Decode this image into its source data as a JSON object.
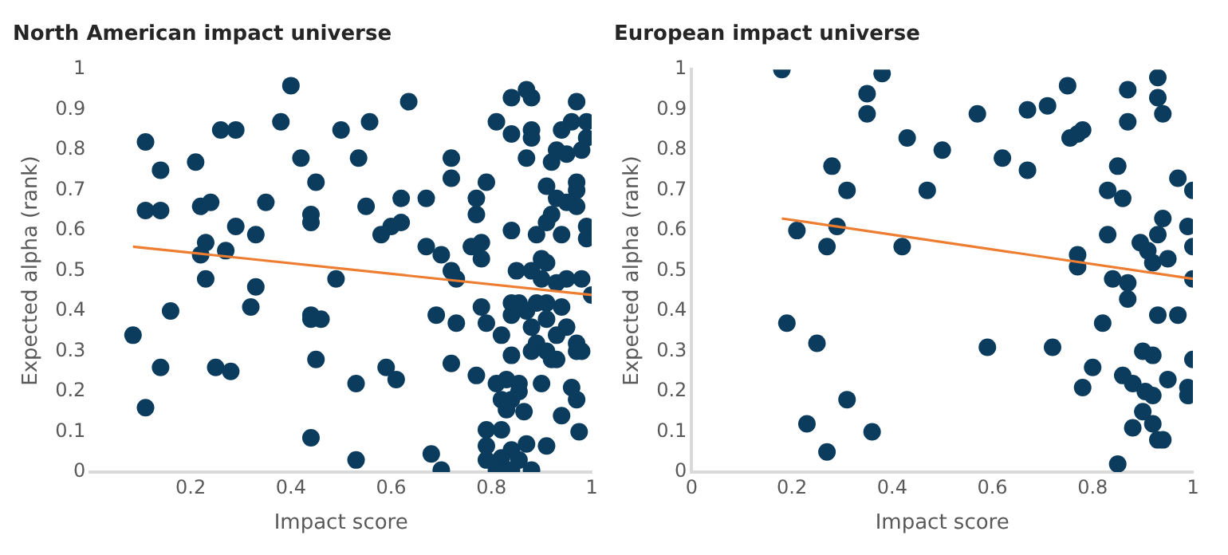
{
  "chart_data": [
    {
      "type": "scatter",
      "title": "North American impact universe",
      "xlabel": "Impact score",
      "ylabel": "Expected alpha (rank)",
      "xlim": [
        0,
        1
      ],
      "ylim": [
        0,
        1
      ],
      "xticks": [
        0.2,
        0.4,
        0.6,
        0.8,
        1
      ],
      "yticks": [
        0,
        0.1,
        0.2,
        0.3,
        0.4,
        0.5,
        0.6,
        0.7,
        0.8,
        0.9,
        1
      ],
      "grid": false,
      "series": [
        {
          "type": "scatter",
          "marker": "circle",
          "color": "#0b3c5d",
          "x": [
            0.4,
            0.11,
            0.26,
            0.29,
            0.38,
            0.5,
            0.14,
            0.21,
            0.42,
            0.45,
            0.11,
            0.14,
            0.22,
            0.24,
            0.35,
            0.44,
            0.44,
            0.29,
            0.33,
            0.23,
            0.22,
            0.27,
            0.23,
            0.49,
            0.33,
            0.32,
            0.16,
            0.44,
            0.46,
            0.44,
            0.085,
            0.14,
            0.25,
            0.28,
            0.45,
            0.11,
            0.44,
            0.53,
            0.53,
            0.535,
            0.635,
            0.557,
            0.55,
            0.62,
            0.67,
            0.58,
            0.6,
            0.62,
            0.67,
            0.7,
            0.72,
            0.73,
            0.72,
            0.72,
            0.79,
            0.77,
            0.77,
            0.76,
            0.78,
            0.78,
            0.84,
            0.85,
            0.69,
            0.73,
            0.78,
            0.79,
            0.82,
            0.84,
            0.72,
            0.77,
            0.59,
            0.61,
            0.68,
            0.7,
            0.84,
            0.87,
            0.88,
            0.97,
            0.81,
            0.84,
            0.88,
            0.88,
            0.87,
            0.94,
            0.96,
            0.99,
            0.93,
            0.92,
            0.95,
            0.98,
            0.99,
            0.91,
            0.93,
            0.97,
            0.97,
            0.97,
            0.95,
            0.92,
            0.91,
            0.89,
            0.94,
            0.99,
            0.99,
            0.9,
            0.91,
            0.88,
            0.9,
            0.93,
            0.95,
            0.98,
            1.0,
            0.84,
            0.855,
            0.87,
            0.84,
            0.89,
            0.91,
            0.94,
            0.91,
            0.95,
            0.93,
            0.88,
            0.89,
            0.88,
            0.91,
            0.92,
            0.93,
            0.97,
            0.98,
            0.97,
            0.81,
            0.83,
            0.855,
            0.82,
            0.84,
            0.83,
            0.865,
            0.855,
            0.9,
            0.96,
            0.97,
            0.94,
            0.975,
            0.79,
            0.82,
            0.79,
            0.79,
            0.82,
            0.84,
            0.87,
            0.81,
            0.84,
            0.855,
            0.88,
            0.91
          ],
          "values": [
            0.96,
            0.82,
            0.85,
            0.85,
            0.87,
            0.85,
            0.75,
            0.77,
            0.78,
            0.72,
            0.65,
            0.65,
            0.66,
            0.67,
            0.67,
            0.64,
            0.62,
            0.61,
            0.59,
            0.57,
            0.54,
            0.55,
            0.48,
            0.48,
            0.46,
            0.41,
            0.4,
            0.39,
            0.38,
            0.38,
            0.34,
            0.26,
            0.26,
            0.25,
            0.28,
            0.16,
            0.085,
            0.22,
            0.03,
            0.78,
            0.92,
            0.87,
            0.66,
            0.68,
            0.68,
            0.59,
            0.61,
            0.62,
            0.56,
            0.54,
            0.5,
            0.48,
            0.73,
            0.78,
            0.72,
            0.68,
            0.64,
            0.56,
            0.57,
            0.53,
            0.6,
            0.5,
            0.39,
            0.37,
            0.41,
            0.37,
            0.34,
            0.29,
            0.27,
            0.24,
            0.26,
            0.23,
            0.045,
            0.005,
            0.93,
            0.95,
            0.93,
            0.92,
            0.87,
            0.84,
            0.85,
            0.83,
            0.78,
            0.85,
            0.87,
            0.87,
            0.8,
            0.77,
            0.79,
            0.8,
            0.83,
            0.71,
            0.68,
            0.72,
            0.7,
            0.66,
            0.67,
            0.64,
            0.62,
            0.59,
            0.59,
            0.61,
            0.58,
            0.53,
            0.52,
            0.5,
            0.48,
            0.47,
            0.48,
            0.48,
            0.44,
            0.42,
            0.42,
            0.4,
            0.39,
            0.42,
            0.42,
            0.41,
            0.38,
            0.36,
            0.34,
            0.36,
            0.32,
            0.3,
            0.3,
            0.28,
            0.28,
            0.32,
            0.3,
            0.3,
            0.22,
            0.23,
            0.22,
            0.18,
            0.18,
            0.155,
            0.15,
            0.2,
            0.22,
            0.21,
            0.18,
            0.14,
            0.1,
            0.105,
            0.105,
            0.065,
            0.03,
            0.035,
            0.055,
            0.07,
            0.005,
            0.005,
            0.03,
            0.005,
            0.065
          ]
        },
        {
          "type": "line",
          "marker": "none",
          "color": "#ed7d31",
          "x": [
            0.085,
            1
          ],
          "values": [
            0.56,
            0.44
          ]
        }
      ]
    },
    {
      "type": "scatter",
      "title": "European impact universe",
      "xlabel": "Impact score",
      "ylabel": "Expected alpha (rank)",
      "xlim": [
        0,
        1
      ],
      "ylim": [
        0,
        1
      ],
      "xticks": [
        0,
        0.2,
        0.4,
        0.6,
        0.8,
        1
      ],
      "yticks": [
        0,
        0.1,
        0.2,
        0.3,
        0.4,
        0.5,
        0.6,
        0.7,
        0.8,
        0.9,
        1
      ],
      "grid": false,
      "series": [
        {
          "type": "scatter",
          "marker": "circle",
          "color": "#0b3c5d",
          "x": [
            0.18,
            0.38,
            0.35,
            0.35,
            0.43,
            0.28,
            0.31,
            0.47,
            0.21,
            0.29,
            0.27,
            0.42,
            0.19,
            0.25,
            0.31,
            0.23,
            0.36,
            0.27,
            0.5,
            0.57,
            0.67,
            0.71,
            0.75,
            0.62,
            0.67,
            0.755,
            0.77,
            0.78,
            0.87,
            0.93,
            0.93,
            0.94,
            0.87,
            0.85,
            0.83,
            0.86,
            0.97,
            1.0,
            0.83,
            0.94,
            0.93,
            0.895,
            0.91,
            0.92,
            0.95,
            0.99,
            1.0,
            0.77,
            0.77,
            0.84,
            0.87,
            0.87,
            1.0,
            0.82,
            0.93,
            0.97,
            0.59,
            0.72,
            0.9,
            0.92,
            1.0,
            0.8,
            0.78,
            0.86,
            0.88,
            0.905,
            0.92,
            0.95,
            0.99,
            0.99,
            0.9,
            0.92,
            0.88,
            0.93,
            0.94,
            0.85
          ],
          "values": [
            1.0,
            0.99,
            0.94,
            0.89,
            0.83,
            0.76,
            0.7,
            0.7,
            0.6,
            0.61,
            0.56,
            0.56,
            0.37,
            0.32,
            0.18,
            0.12,
            0.1,
            0.05,
            0.8,
            0.89,
            0.9,
            0.91,
            0.96,
            0.78,
            0.75,
            0.83,
            0.84,
            0.85,
            0.95,
            0.98,
            0.93,
            0.89,
            0.87,
            0.76,
            0.7,
            0.68,
            0.73,
            0.7,
            0.59,
            0.63,
            0.59,
            0.57,
            0.55,
            0.52,
            0.53,
            0.61,
            0.56,
            0.54,
            0.51,
            0.48,
            0.47,
            0.43,
            0.48,
            0.37,
            0.39,
            0.39,
            0.31,
            0.31,
            0.3,
            0.29,
            0.28,
            0.26,
            0.21,
            0.24,
            0.22,
            0.2,
            0.19,
            0.23,
            0.21,
            0.19,
            0.15,
            0.12,
            0.11,
            0.08,
            0.08,
            0.02
          ]
        },
        {
          "type": "line",
          "marker": "none",
          "color": "#ed7d31",
          "x": [
            0.18,
            1
          ],
          "values": [
            0.63,
            0.48
          ]
        }
      ]
    }
  ]
}
